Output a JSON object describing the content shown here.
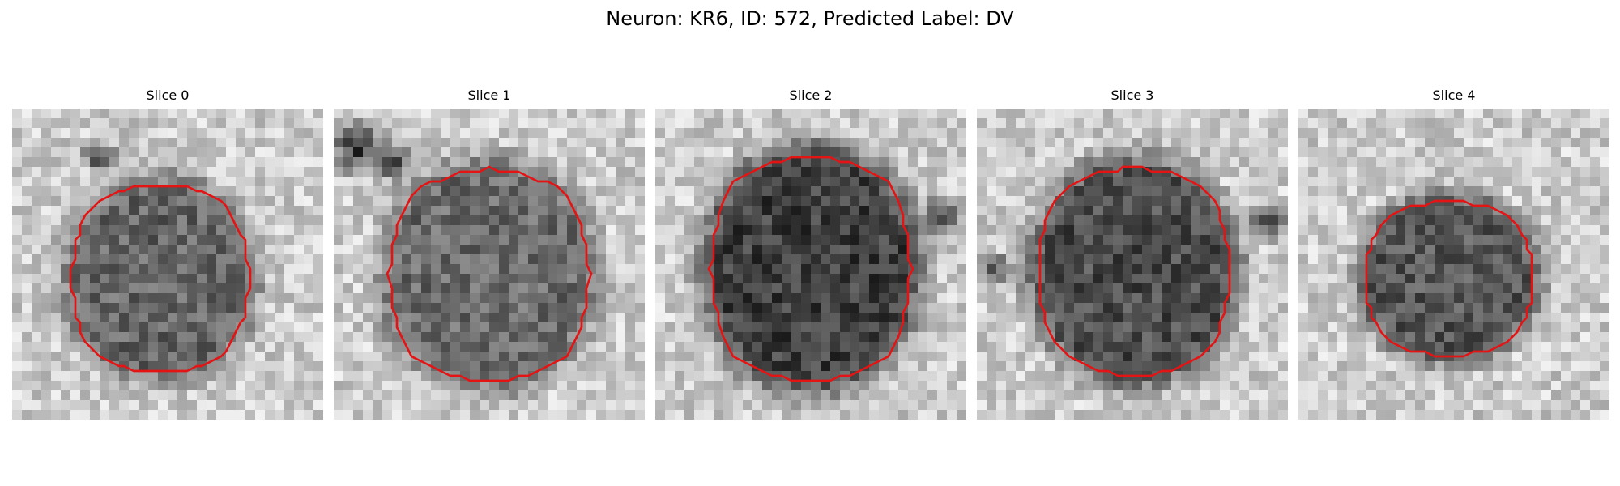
{
  "figure": {
    "title": "Neuron: KR6, ID: 572, Predicted Label: DV"
  },
  "panels": [
    {
      "title": "Slice 0"
    },
    {
      "title": "Slice 1"
    },
    {
      "title": "Slice 2"
    },
    {
      "title": "Slice 3"
    },
    {
      "title": "Slice 4"
    }
  ],
  "colors": {
    "contour": "#e41414",
    "background": "#ffffff"
  }
}
